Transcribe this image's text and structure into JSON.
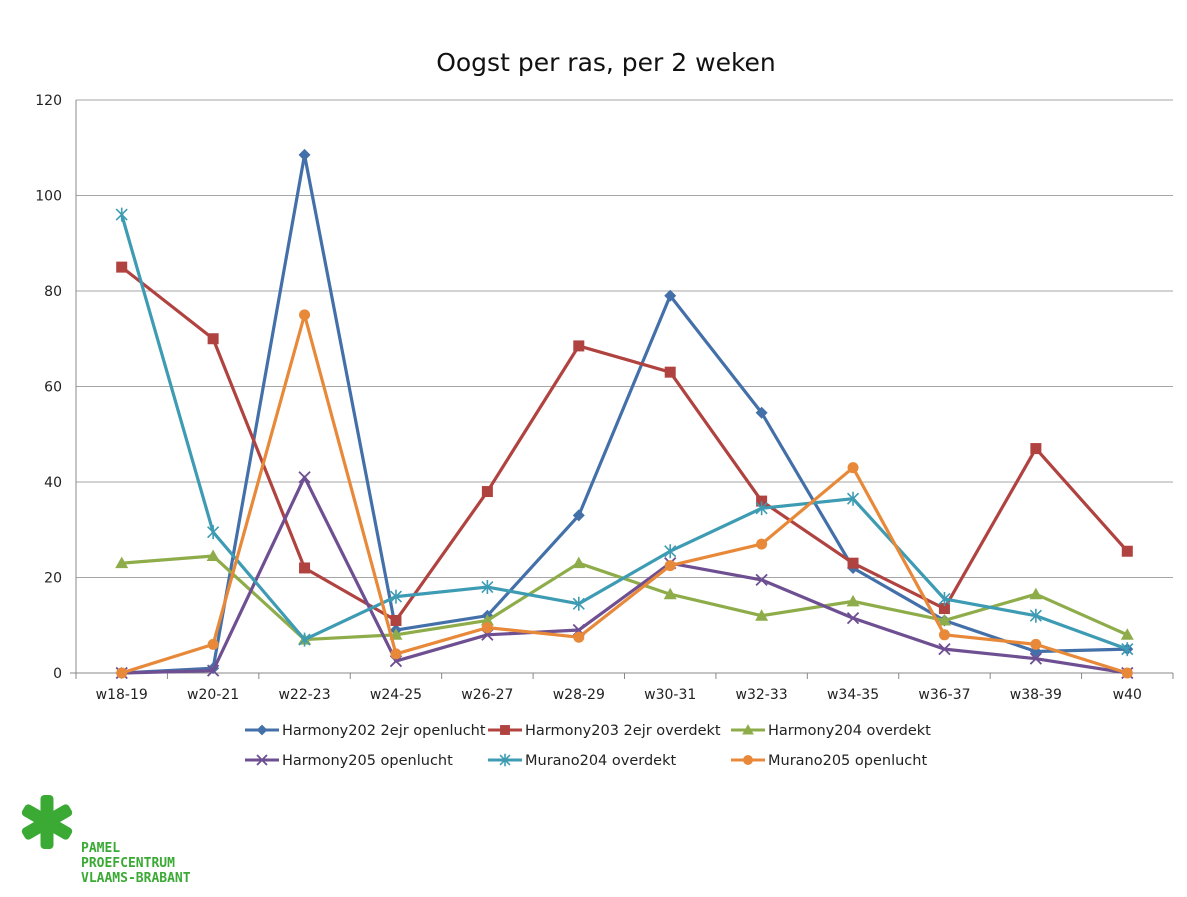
{
  "chart_data": {
    "type": "line",
    "title": "Oogst per ras, per 2 weken",
    "xlabel": "",
    "ylabel": "",
    "categories": [
      "w18-19",
      "w20-21",
      "w22-23",
      "w24-25",
      "w26-27",
      "w28-29",
      "w30-31",
      "w32-33",
      "w34-35",
      "w36-37",
      "w38-39",
      "w40"
    ],
    "ylim": [
      0,
      120
    ],
    "yticks": [
      0,
      20,
      40,
      60,
      80,
      100,
      120
    ],
    "grid": true,
    "legend": "bottom",
    "series": [
      {
        "name": "Harmony202 2ejr openlucht",
        "color": "#4470aa",
        "marker": "diamond",
        "values": [
          0,
          1,
          108.5,
          9,
          12,
          33,
          79,
          54.5,
          22,
          11,
          4.5,
          5
        ]
      },
      {
        "name": "Harmony203 2ejr overdekt",
        "color": "#b04340",
        "marker": "square",
        "values": [
          85,
          70,
          22,
          11,
          38,
          68.5,
          63,
          36,
          23,
          13.5,
          47,
          25.5
        ]
      },
      {
        "name": "Harmony204 overdekt",
        "color": "#8ead4a",
        "marker": "triangle",
        "values": [
          23,
          24.5,
          7,
          8,
          11,
          23,
          16.5,
          12,
          15,
          11,
          16.5,
          8
        ]
      },
      {
        "name": "Harmony205 openlucht",
        "color": "#6e4f92",
        "marker": "x",
        "values": [
          0,
          0.5,
          41,
          2.5,
          8,
          9,
          23,
          19.5,
          11.5,
          5,
          3,
          0
        ]
      },
      {
        "name": "Murano204 overdekt",
        "color": "#3d9bb3",
        "marker": "star",
        "values": [
          96,
          29.5,
          7,
          16,
          18,
          14.5,
          25.5,
          34.5,
          36.5,
          15.5,
          12,
          5
        ]
      },
      {
        "name": "Murano205 openlucht",
        "color": "#e8893a",
        "marker": "circle",
        "values": [
          0,
          6,
          75,
          4,
          9.5,
          7.5,
          22.5,
          27,
          43,
          8,
          6,
          0
        ]
      }
    ]
  },
  "logo": {
    "line1": "PAMEL",
    "line2": "PROEFCENTRUM",
    "line3": "VLAAMS-BRABANT",
    "color": "#3aaa35"
  }
}
